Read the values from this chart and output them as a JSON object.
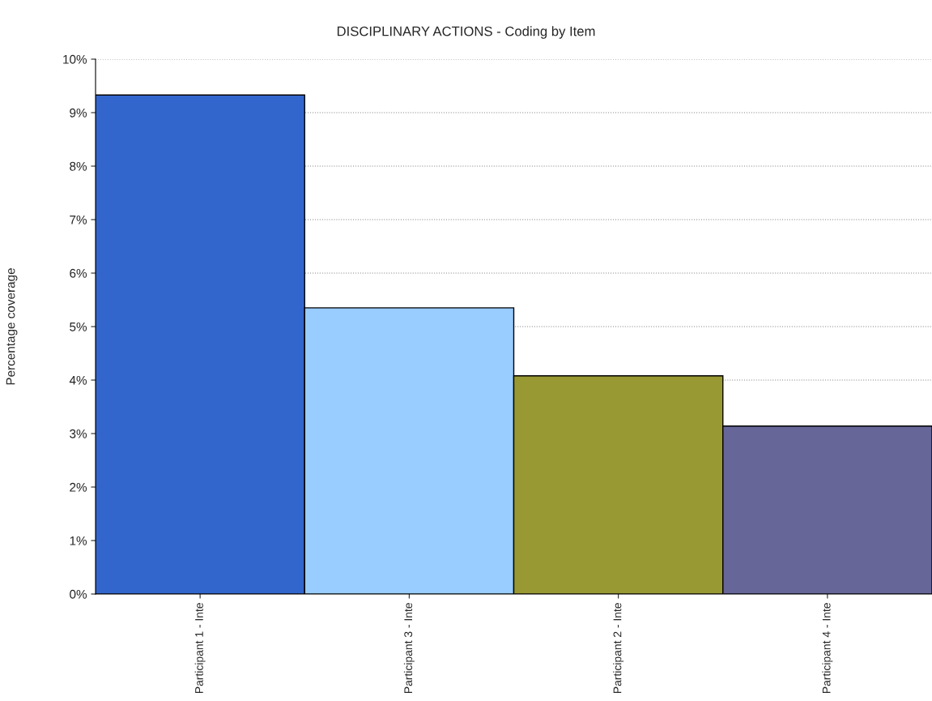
{
  "chart_data": {
    "type": "bar",
    "title": "DISCIPLINARY ACTIONS - Coding by Item",
    "ylabel": "Percentage coverage",
    "categories": [
      "Participant 1 - Inte",
      "Participant 3 - Inte",
      "Participant 2 - Inte",
      "Participant 4 - Inte"
    ],
    "values": [
      9.33,
      5.35,
      4.08,
      3.14
    ],
    "colors": [
      "#3366cc",
      "#99ccff",
      "#999933",
      "#666699"
    ],
    "ylim": [
      0,
      10
    ],
    "yticks": [
      {
        "value": 0,
        "label": "0%"
      },
      {
        "value": 1,
        "label": "1%"
      },
      {
        "value": 2,
        "label": "2%"
      },
      {
        "value": 3,
        "label": "3%"
      },
      {
        "value": 4,
        "label": "4%"
      },
      {
        "value": 5,
        "label": "5%"
      },
      {
        "value": 6,
        "label": "6%"
      },
      {
        "value": 7,
        "label": "7%"
      },
      {
        "value": 8,
        "label": "8%"
      },
      {
        "value": 9,
        "label": "9%"
      },
      {
        "value": 10,
        "label": "10%"
      }
    ],
    "grid": "y",
    "legend": false
  }
}
